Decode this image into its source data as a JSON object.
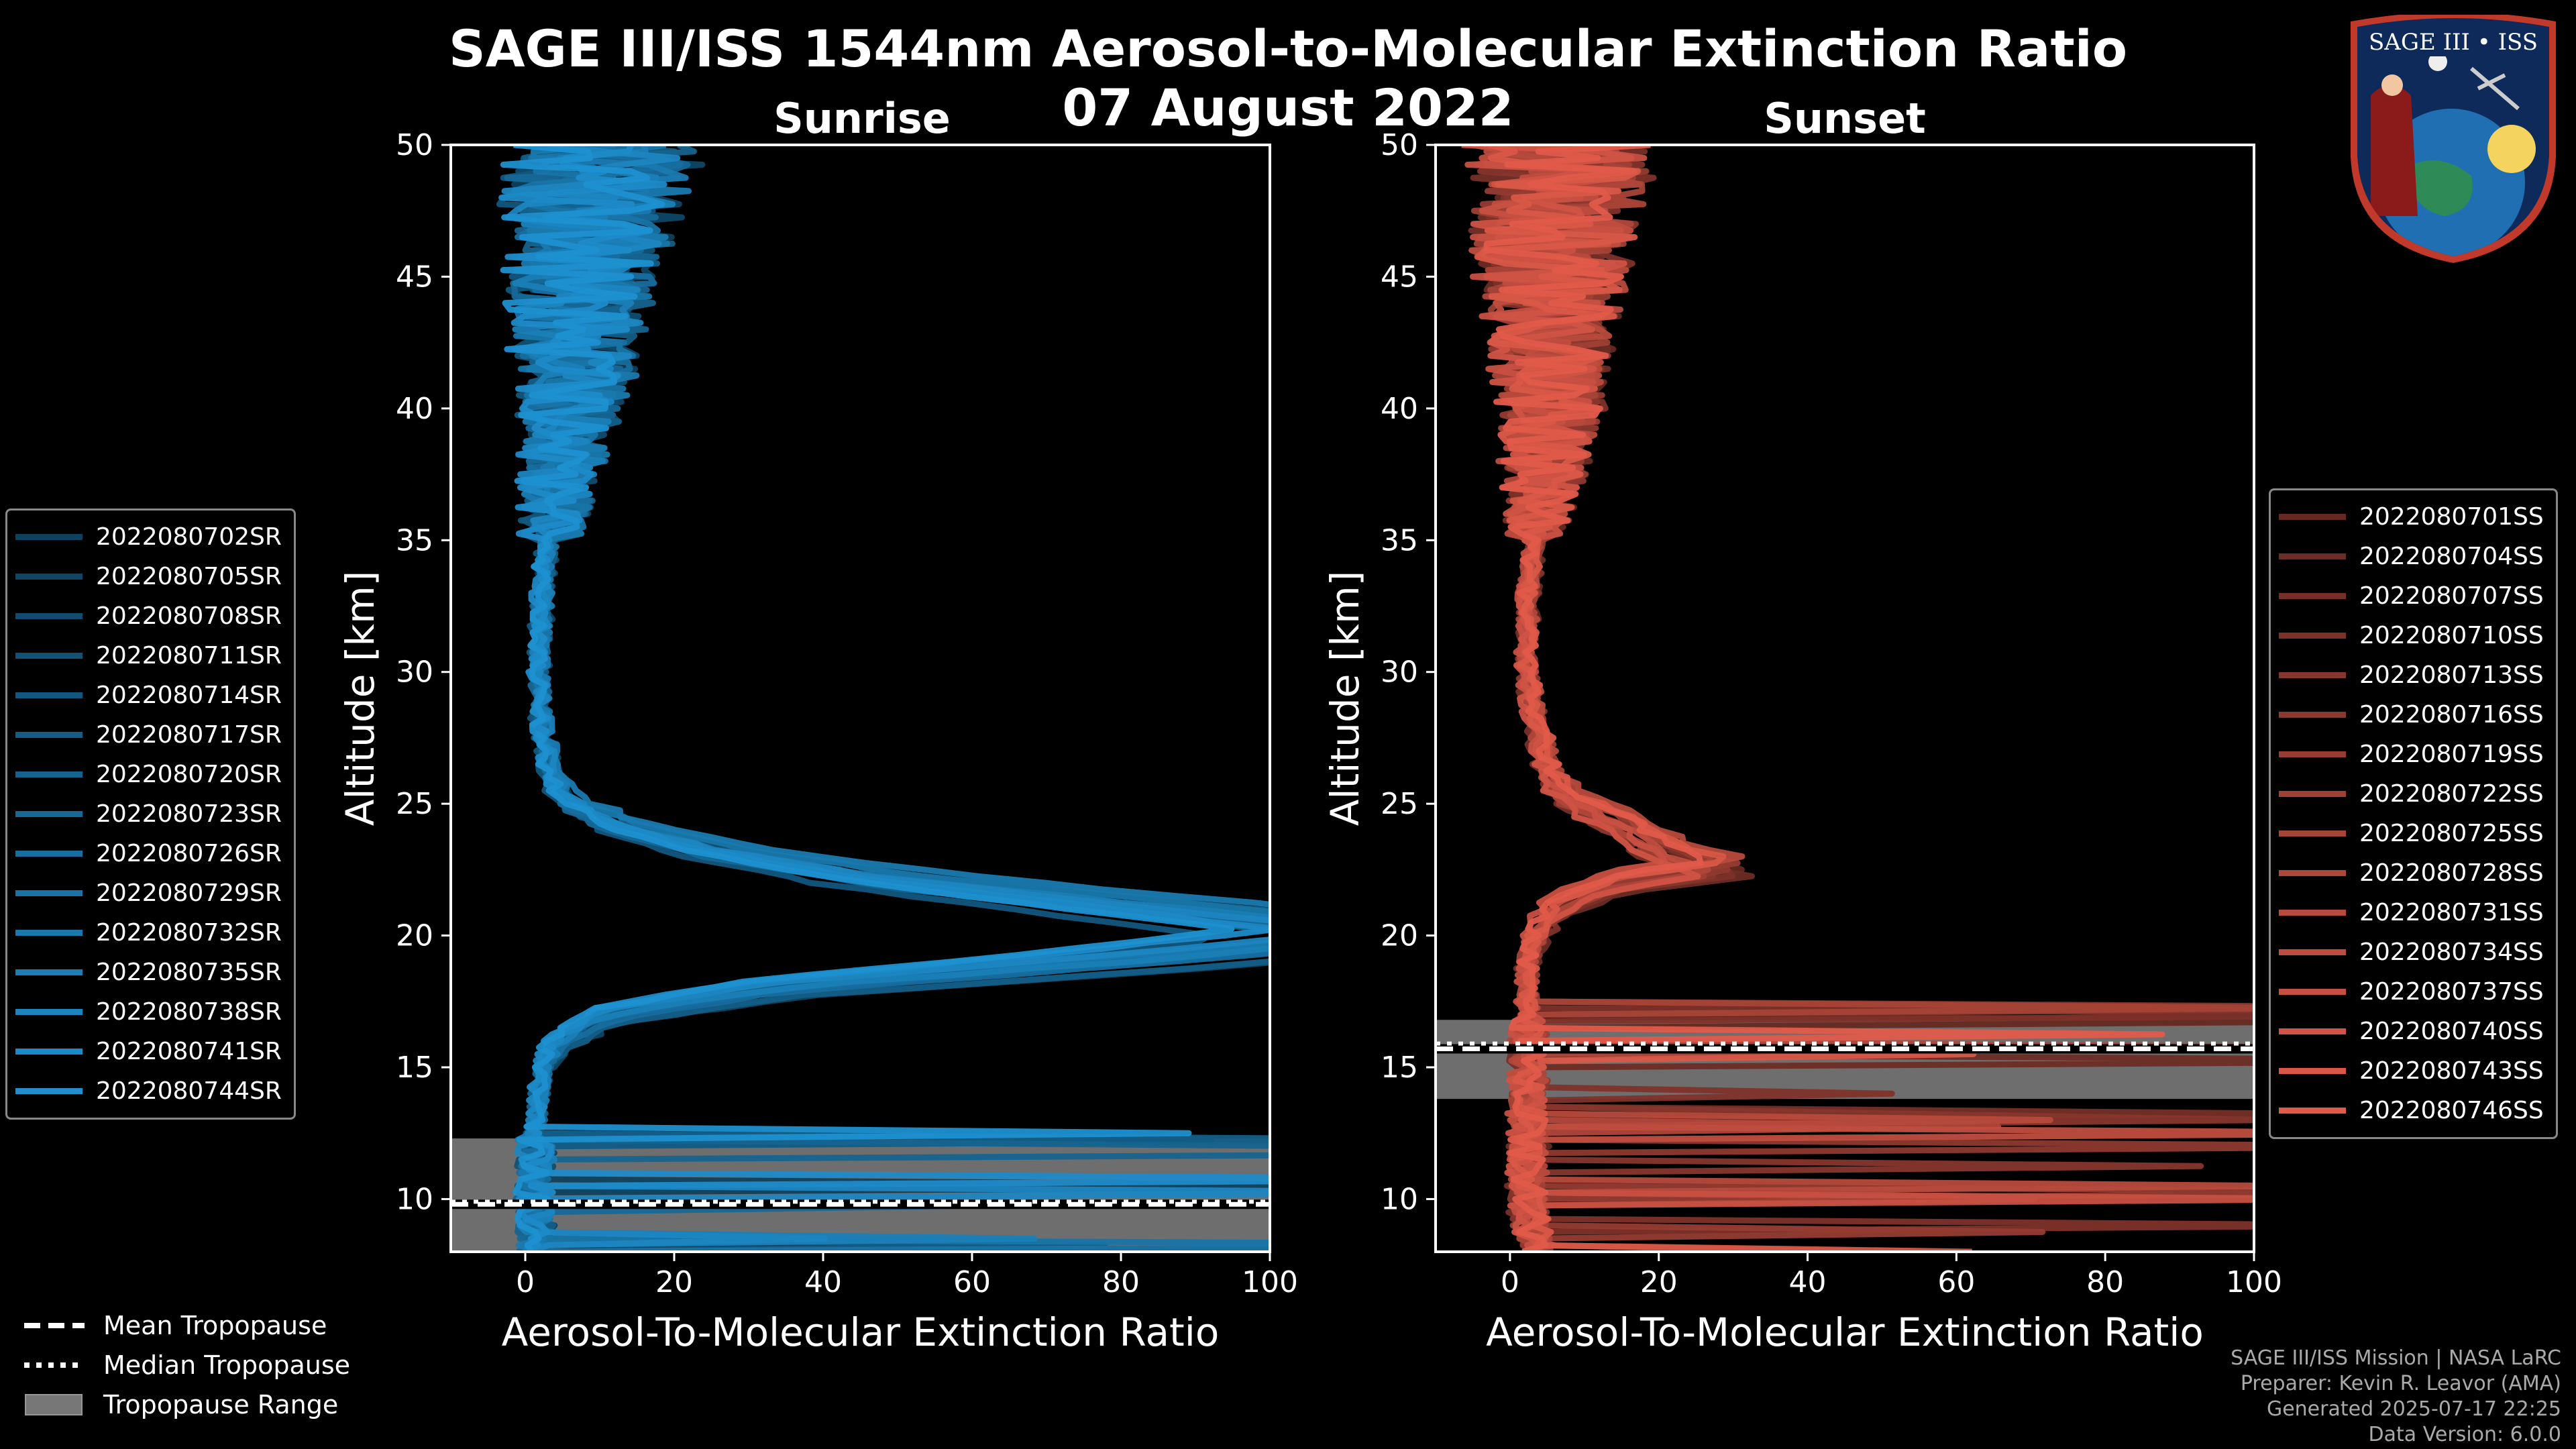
{
  "header": {
    "title_line1": "SAGE III/ISS 1544nm Aerosol-to-Molecular Extinction Ratio",
    "title_line2": "07 August 2022"
  },
  "logo": {
    "text": "SAGE III • ISS",
    "name": "sage-iii-iss-mission-patch"
  },
  "legend_sunrise": [
    "2022080702SR",
    "2022080705SR",
    "2022080708SR",
    "2022080711SR",
    "2022080714SR",
    "2022080717SR",
    "2022080720SR",
    "2022080723SR",
    "2022080726SR",
    "2022080729SR",
    "2022080732SR",
    "2022080735SR",
    "2022080738SR",
    "2022080741SR",
    "2022080744SR"
  ],
  "legend_sunset": [
    "2022080701SS",
    "2022080704SS",
    "2022080707SS",
    "2022080710SS",
    "2022080713SS",
    "2022080716SS",
    "2022080719SS",
    "2022080722SS",
    "2022080725SS",
    "2022080728SS",
    "2022080731SS",
    "2022080734SS",
    "2022080737SS",
    "2022080740SS",
    "2022080743SS",
    "2022080746SS"
  ],
  "tropopause_legend": {
    "mean": "Mean Tropopause",
    "median": "Median Tropopause",
    "range": "Tropopause Range"
  },
  "credits": {
    "line1": "SAGE III/ISS Mission | NASA LaRC",
    "line2": "Preparer: Kevin R. Leavor (AMA)",
    "line3": "Generated 2025-07-17 22:25",
    "line4": "Data Version: 6.0.0"
  },
  "chart_data": [
    {
      "type": "line",
      "panel": "Sunrise",
      "title": "Sunrise",
      "xlabel": "Aerosol-To-Molecular Extinction Ratio",
      "ylabel": "Altitude [km]",
      "xlim": [
        -10,
        100
      ],
      "ylim": [
        8,
        50
      ],
      "xticks": [
        0,
        20,
        40,
        60,
        80,
        100
      ],
      "yticks": [
        10,
        15,
        20,
        25,
        30,
        35,
        40,
        45,
        50
      ],
      "tropopause": {
        "range": [
          8,
          12.3
        ],
        "mean": 9.8,
        "median": 9.9
      },
      "base_color": "#1e90d0",
      "base_profile": {
        "alt": [
          8,
          10,
          12,
          14,
          15,
          16,
          17,
          18,
          19,
          20,
          21,
          22,
          23,
          24,
          25,
          26,
          28,
          30,
          33,
          36,
          40,
          45,
          50
        ],
        "ratio": [
          1,
          1,
          1,
          1.5,
          2,
          4,
          10,
          30,
          70,
          105,
          75,
          45,
          25,
          12,
          5,
          3,
          2,
          1.5,
          2,
          3,
          5,
          6,
          8
        ]
      },
      "series_names": [
        "2022080702SR",
        "2022080705SR",
        "2022080708SR",
        "2022080711SR",
        "2022080714SR",
        "2022080717SR",
        "2022080720SR",
        "2022080723SR",
        "2022080726SR",
        "2022080729SR",
        "2022080732SR",
        "2022080735SR",
        "2022080738SR",
        "2022080741SR",
        "2022080744SR"
      ]
    },
    {
      "type": "line",
      "panel": "Sunset",
      "title": "Sunset",
      "xlabel": "Aerosol-To-Molecular Extinction Ratio",
      "ylabel": "Altitude [km]",
      "xlim": [
        -10,
        100
      ],
      "ylim": [
        8,
        50
      ],
      "xticks": [
        0,
        20,
        40,
        60,
        80,
        100
      ],
      "yticks": [
        10,
        15,
        20,
        25,
        30,
        35,
        40,
        45,
        50
      ],
      "tropopause": {
        "range": [
          13.8,
          16.8
        ],
        "mean": 15.7,
        "median": 15.9
      },
      "base_color": "#e05a4a",
      "base_profile": {
        "alt": [
          8,
          10,
          12,
          14,
          16,
          17,
          18,
          19,
          20,
          21,
          22,
          22.6,
          23,
          24,
          25,
          26,
          28,
          30,
          33,
          36,
          40,
          45,
          50
        ],
        "ratio": [
          3,
          2,
          2,
          2,
          2,
          2,
          2,
          2,
          3,
          5,
          12,
          25,
          20,
          15,
          8,
          5,
          3,
          2,
          2,
          3,
          4,
          4,
          5
        ]
      },
      "series_names": [
        "2022080701SS",
        "2022080704SS",
        "2022080707SS",
        "2022080710SS",
        "2022080713SS",
        "2022080716SS",
        "2022080719SS",
        "2022080722SS",
        "2022080725SS",
        "2022080728SS",
        "2022080731SS",
        "2022080734SS",
        "2022080737SS",
        "2022080740SS",
        "2022080743SS",
        "2022080746SS"
      ]
    }
  ]
}
